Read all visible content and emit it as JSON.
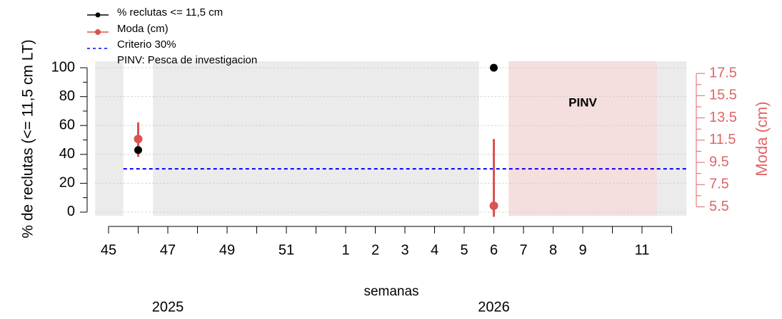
{
  "chart_data": {
    "type": "dual-axis",
    "categories": [
      "45",
      null,
      "47",
      null,
      "49",
      null,
      "51",
      null,
      "1",
      "2",
      "3",
      "4",
      "5",
      "6",
      "7",
      "8",
      "9",
      null,
      "11",
      null
    ],
    "xlabel": "semanas",
    "years": [
      {
        "label": "2025",
        "at": "47"
      },
      {
        "label": "2026",
        "at": "6"
      }
    ],
    "ylabel": "% de reclutas (<= 11,5 cm LT)",
    "y2label": "Moda (cm)",
    "ylim": [
      -2.5,
      104.5
    ],
    "yticks": [
      0,
      20,
      40,
      60,
      80,
      100
    ],
    "yminor": [
      10,
      30,
      50,
      70,
      90
    ],
    "y2lim": [
      4.7,
      18.6
    ],
    "y2ticks": [
      5.5,
      7.5,
      9.5,
      11.5,
      13.5,
      15.5,
      17.5
    ],
    "y2minor": [
      6.5,
      8.5,
      10.5,
      12.5,
      14.5,
      16.5
    ],
    "grid": true,
    "series": [
      {
        "name": "% reclutas <= 11,5 cm",
        "color": "#000000",
        "values": [
          null,
          43,
          null,
          null,
          null,
          null,
          null,
          null,
          null,
          null,
          null,
          null,
          null,
          100,
          null,
          null,
          null,
          null,
          null,
          null
        ]
      },
      {
        "name": "Moda (cm)",
        "color": "#d9534f",
        "axis": "y2",
        "values": [
          null,
          11.6,
          null,
          null,
          null,
          null,
          null,
          null,
          null,
          null,
          null,
          null,
          null,
          5.6,
          null,
          null,
          null,
          null,
          null,
          null
        ],
        "low": [
          null,
          10.0,
          null,
          null,
          null,
          null,
          null,
          null,
          null,
          null,
          null,
          null,
          null,
          4.6,
          null,
          null,
          null,
          null,
          null,
          null
        ],
        "high": [
          null,
          13.1,
          null,
          null,
          null,
          null,
          null,
          null,
          null,
          null,
          null,
          null,
          null,
          11.6,
          null,
          null,
          null,
          null,
          null,
          null
        ]
      }
    ],
    "criterion": {
      "name": "Criterio 30%",
      "value": 30,
      "color": "#0000ff"
    },
    "pinv": {
      "legend": "PINV: Pesca de investigacion",
      "label": "PINV",
      "start": "7",
      "end": "11",
      "color": "#f5dede"
    }
  }
}
